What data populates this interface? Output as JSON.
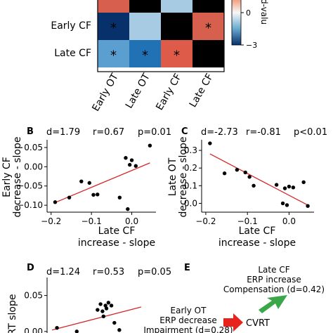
{
  "heatmap": {
    "rows": [
      "Early CF",
      "Late CF"
    ],
    "cols": [
      "Early OT",
      "Late OT",
      "Early CF",
      "Late CF"
    ],
    "cells": [
      [
        {
          "color": "#08306b",
          "star": true
        },
        {
          "color": "#a6cbe3",
          "star": false
        },
        {
          "color": "#000000",
          "star": false
        },
        {
          "color": "#d6604d",
          "star": true
        }
      ],
      [
        {
          "color": "#5b9ed0",
          "star": true
        },
        {
          "color": "#2171b5",
          "star": true
        },
        {
          "color": "#de5a49",
          "star": true
        },
        {
          "color": "#000000",
          "star": false
        }
      ]
    ],
    "top_partial_colors": [
      "#d6604d",
      "#000000",
      "#a6cbe3",
      "#000000"
    ],
    "star_symbol": "*",
    "colorbar": {
      "label": "d-valu",
      "ticks": [
        {
          "value": 0,
          "label": "0"
        },
        {
          "value": -3,
          "label": "−3"
        }
      ],
      "range": [
        -3,
        3
      ]
    }
  },
  "panels": {
    "B": {
      "letter": "B",
      "stats": {
        "d": "d=1.79",
        "r": "r=0.67",
        "p": "p=0.01"
      },
      "ylabel_lines": [
        "Early CF",
        "decrease - slope"
      ],
      "xlabel_lines": [
        "Late CF",
        "increase - slope"
      ]
    },
    "C": {
      "letter": "C",
      "stats": {
        "d": "d=-2.73",
        "r": "r=-0.81",
        "p": "p<0.01"
      },
      "ylabel_lines": [
        "Late OT",
        "decrease - slope"
      ],
      "xlabel_lines": [
        "Late CF",
        "increase - slope"
      ]
    },
    "D": {
      "letter": "D",
      "stats": {
        "d": "d=1.24",
        "r": "r=0.53",
        "p": "p=0.05"
      },
      "ylabel_partial": "RT slope"
    },
    "E": {
      "letter": "E",
      "late_cf_lines": [
        "Late CF",
        "ERP increase",
        "Compensation (d=0.42)"
      ],
      "early_ot_lines": [
        "Early OT",
        "ERP decrease",
        "Impairment (d=0.28)"
      ],
      "cvrt": "CVRT"
    }
  },
  "colors": {
    "fit_line": "#d62728",
    "points": "#000000",
    "arrow_red": "#e8231c",
    "arrow_green": "#3aa84a"
  },
  "chart_data": [
    {
      "type": "scatter",
      "panel": "B",
      "title": "",
      "xlabel": "Late CF increase - slope",
      "ylabel": "Early CF decrease - slope",
      "xlim": [
        -0.21,
        0.06
      ],
      "ylim": [
        -0.118,
        0.07
      ],
      "xticks": [
        {
          "v": -0.2,
          "l": "−0.2"
        },
        {
          "v": -0.1,
          "l": "−0.1"
        },
        {
          "v": 0.0,
          "l": "0.0"
        }
      ],
      "yticks": [
        {
          "v": 0.05,
          "l": "0.05"
        },
        {
          "v": 0.0,
          "l": "0.00"
        },
        {
          "v": -0.05,
          "l": "−0.05"
        },
        {
          "v": -0.1,
          "l": "−0.10"
        }
      ],
      "points": [
        [
          -0.19,
          -0.092
        ],
        [
          -0.155,
          -0.08
        ],
        [
          -0.125,
          -0.038
        ],
        [
          -0.105,
          -0.042
        ],
        [
          -0.095,
          -0.073
        ],
        [
          -0.085,
          -0.072
        ],
        [
          -0.03,
          -0.08
        ],
        [
          -0.015,
          0.023
        ],
        [
          -0.01,
          -0.11
        ],
        [
          -0.005,
          0.005
        ],
        [
          0.0,
          0.017
        ],
        [
          0.01,
          0.002
        ],
        [
          0.045,
          0.055
        ]
      ],
      "fit": [
        [
          -0.19,
          -0.093
        ],
        [
          0.045,
          0.01
        ]
      ]
    },
    {
      "type": "scatter",
      "panel": "C",
      "title": "",
      "xlabel": "Late CF increase - slope",
      "ylabel": "Late OT decrease - slope",
      "xlim": [
        -0.21,
        0.06
      ],
      "ylim": [
        -0.05,
        0.36
      ],
      "xticks": [
        {
          "v": -0.2,
          "l": "−0.2"
        },
        {
          "v": -0.1,
          "l": "−0.1"
        },
        {
          "v": 0.0,
          "l": "0.0"
        }
      ],
      "yticks": [
        {
          "v": 0.3,
          "l": "0.3"
        },
        {
          "v": 0.2,
          "l": "0.2"
        },
        {
          "v": 0.1,
          "l": "0.1"
        },
        {
          "v": 0.0,
          "l": "0.0"
        }
      ],
      "points": [
        [
          -0.19,
          0.34
        ],
        [
          -0.155,
          0.17
        ],
        [
          -0.125,
          0.19
        ],
        [
          -0.105,
          0.175
        ],
        [
          -0.095,
          0.15
        ],
        [
          -0.085,
          0.1
        ],
        [
          -0.03,
          0.105
        ],
        [
          -0.015,
          0.0
        ],
        [
          -0.01,
          0.085
        ],
        [
          -0.005,
          -0.01
        ],
        [
          0.0,
          0.095
        ],
        [
          0.01,
          0.09
        ],
        [
          0.035,
          0.12
        ],
        [
          0.045,
          -0.015
        ]
      ],
      "fit": [
        [
          -0.19,
          0.28
        ],
        [
          0.045,
          -0.01
        ]
      ]
    },
    {
      "type": "scatter",
      "panel": "D",
      "title": "",
      "xlabel": "",
      "ylabel": "RT slope",
      "ylim": [
        -0.008,
        0.075
      ],
      "yticks": [
        {
          "v": 0.05,
          "l": "0.05"
        },
        {
          "v": 0.0,
          "l": "0.00"
        }
      ],
      "points": [
        [
          0.0,
          0.005
        ],
        [
          0.2,
          0.0
        ],
        [
          0.41,
          0.03
        ],
        [
          0.44,
          0.038
        ],
        [
          0.46,
          0.028
        ],
        [
          0.47,
          0.021
        ],
        [
          0.49,
          0.036
        ],
        [
          0.5,
          0.032
        ],
        [
          0.52,
          0.04
        ],
        [
          0.55,
          0.036
        ],
        [
          0.58,
          0.012
        ],
        [
          0.63,
          0.002
        ]
      ],
      "fit": [
        [
          -0.05,
          0.002
        ],
        [
          0.85,
          0.034
        ]
      ]
    }
  ]
}
